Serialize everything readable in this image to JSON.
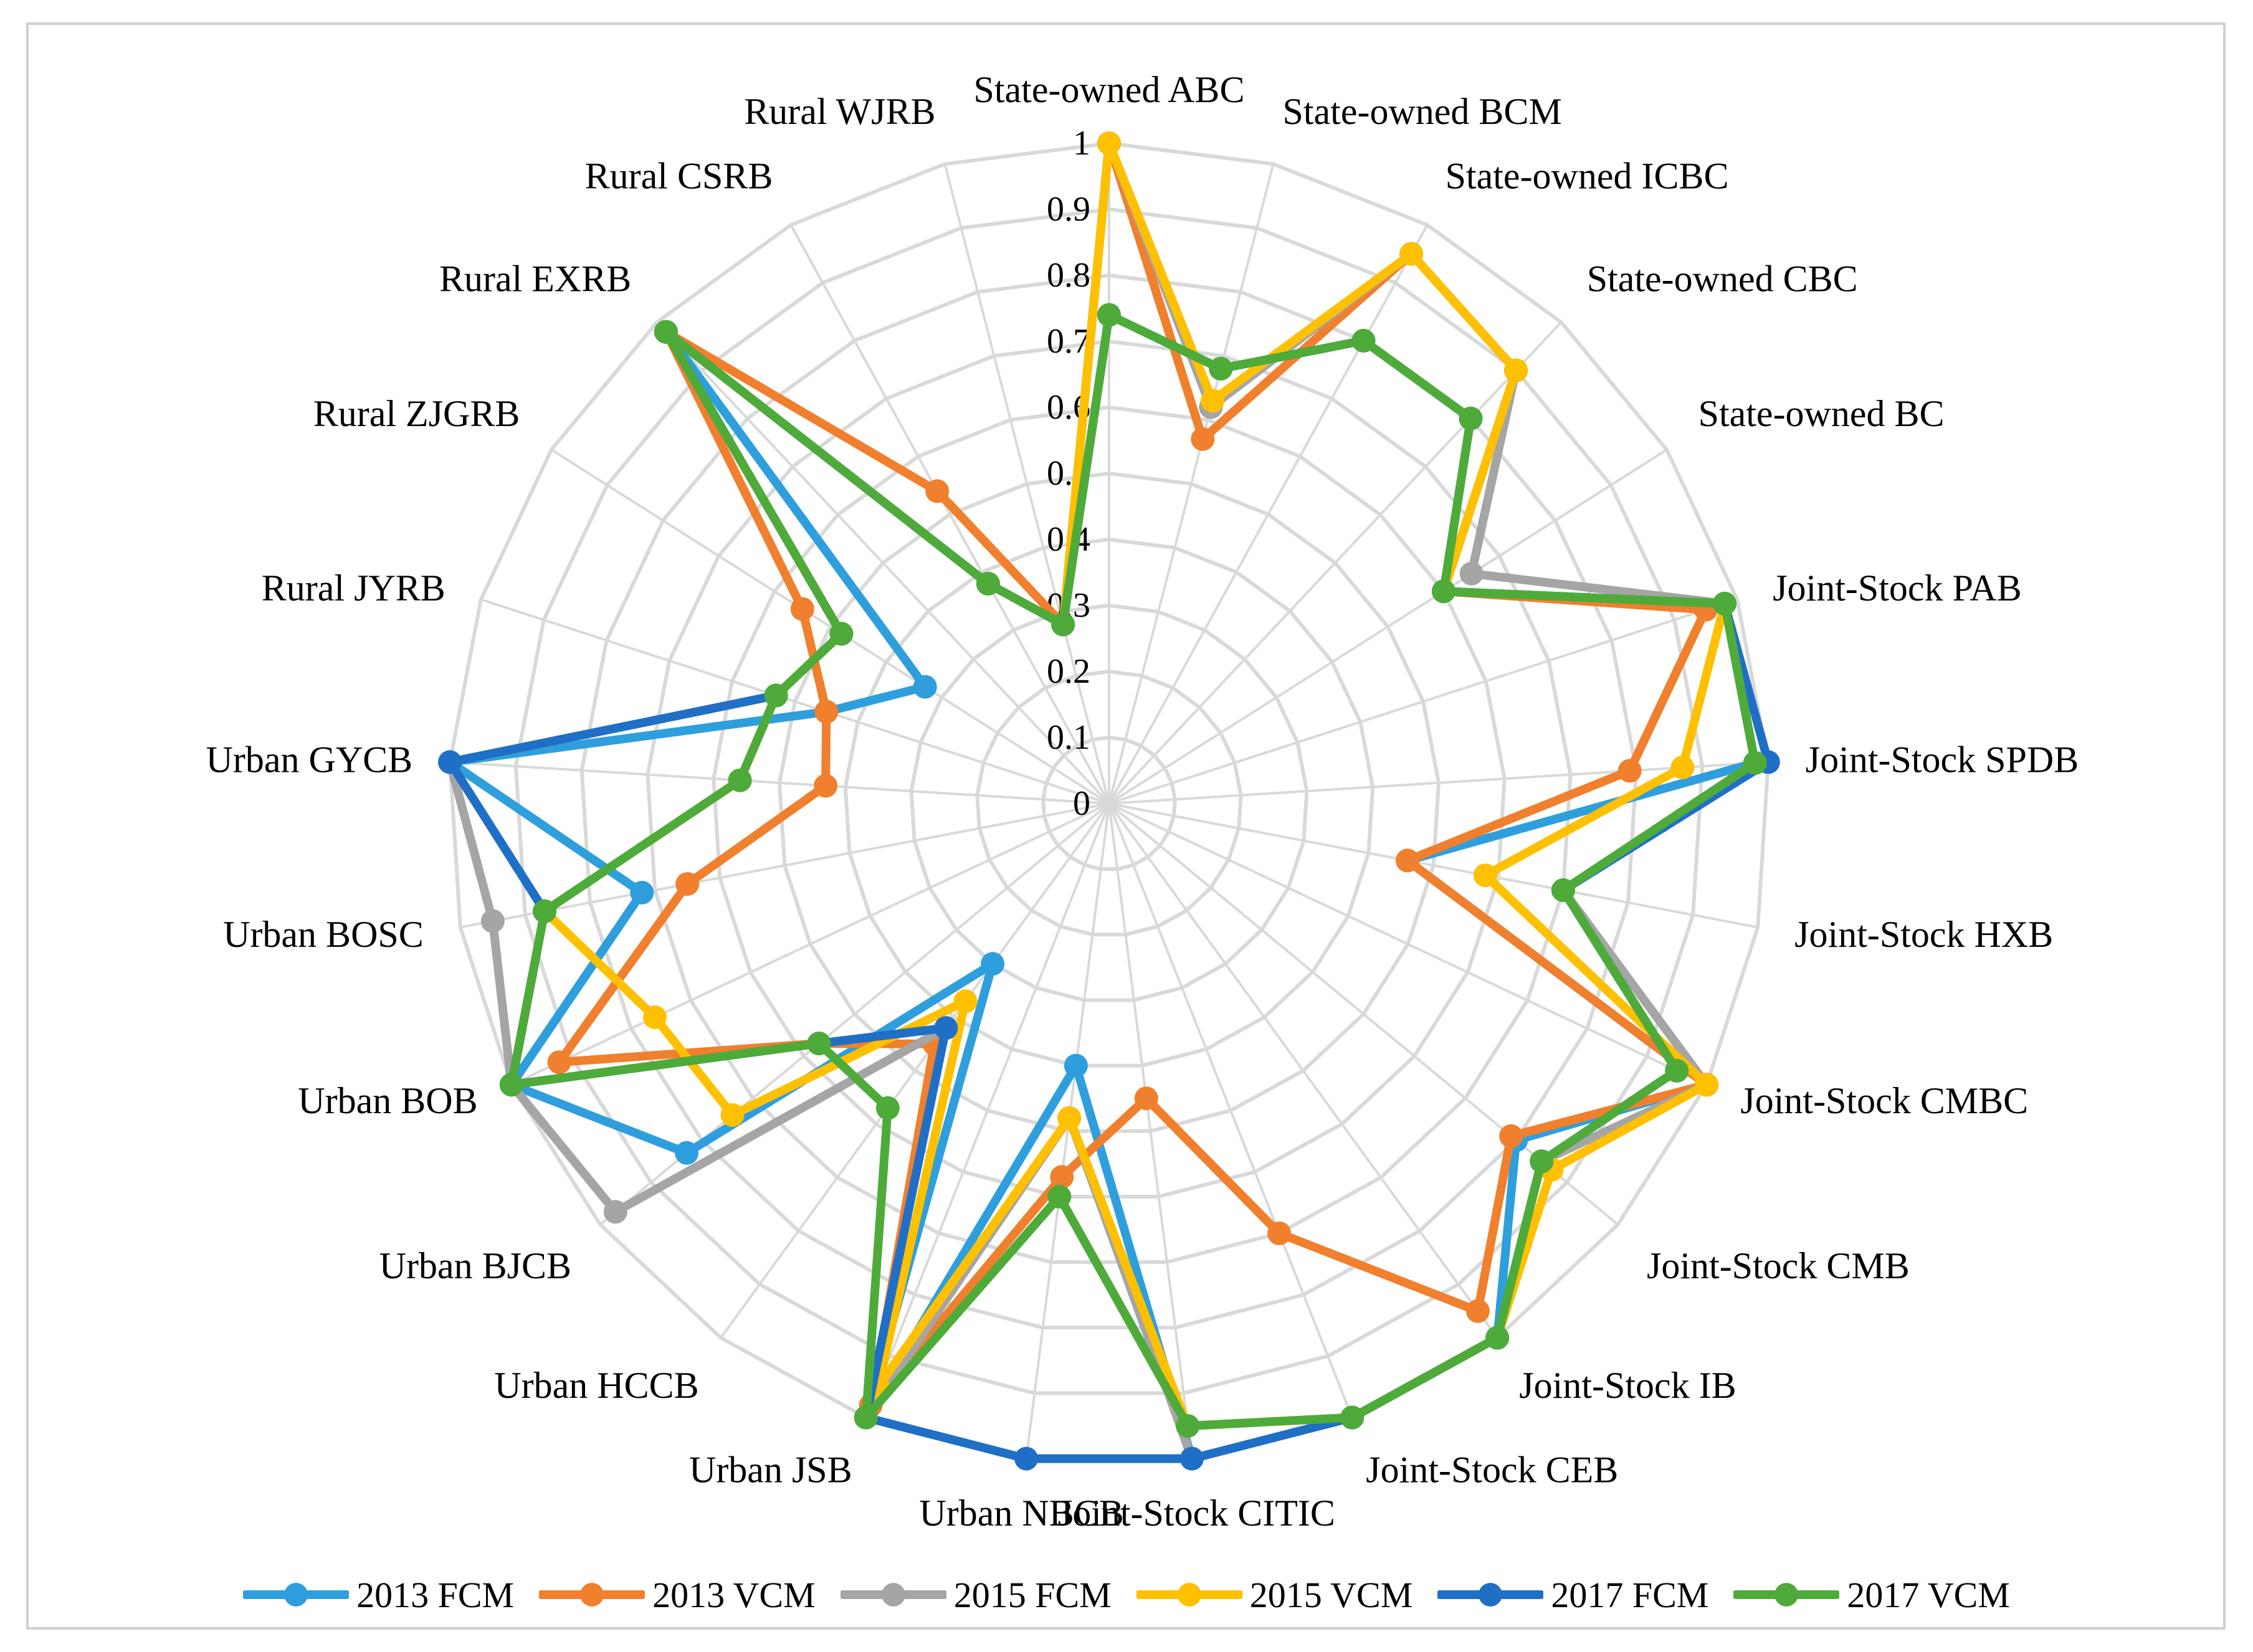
{
  "chart_data": {
    "type": "radar",
    "title": "",
    "categories": [
      "State-owned ABC",
      "State-owned BCM",
      "State-owned ICBC",
      "State-owned CBC",
      "State-owned BC",
      "Joint-Stock PAB",
      "Joint-Stock SPDB",
      "Joint-Stock HXB",
      "Joint-Stock CMBC",
      "Joint-Stock CMB",
      "Joint-Stock IB",
      "Joint-Stock CEB",
      "Joint-Stock CITIC",
      "Urban NBCB",
      "Urban JSB",
      "Urban HCCB",
      "Urban BJCB",
      "Urban BOB",
      "Urban BOSC",
      "Urban GYCB",
      "Rural JYRB",
      "Rural ZJGRB",
      "Rural EXRB",
      "Rural CSRB",
      "Rural WJRB"
    ],
    "rlim": [
      0,
      1
    ],
    "ticks": [
      0,
      0.1,
      0.2,
      0.3,
      0.4,
      0.5,
      0.6,
      0.7,
      0.8,
      0.9,
      1
    ],
    "tick_labels": [
      "0",
      "0.1",
      "0.2",
      "0.3",
      "0.4",
      "0.5",
      "0.6",
      "0.7",
      "0.8",
      "0.9",
      "1"
    ],
    "legend_position": "bottom",
    "series": [
      {
        "name": "2013 FCM",
        "color": "#2e9fdc",
        "values": [
          1.0,
          0.62,
          0.95,
          0.9,
          0.6,
          0.98,
          0.98,
          0.46,
          1.0,
          0.8,
          1.0,
          1.0,
          1.0,
          0.4,
          1.0,
          0.3,
          0.83,
          1.0,
          0.72,
          1.0,
          0.45,
          0.33,
          0.98,
          0.38,
          0.28
        ]
      },
      {
        "name": "2013 VCM",
        "color": "#f07f2e",
        "values": [
          1.0,
          0.57,
          0.95,
          0.9,
          0.6,
          0.95,
          0.79,
          0.46,
          1.0,
          0.79,
          0.95,
          0.7,
          0.45,
          0.57,
          0.98,
          0.45,
          0.57,
          0.92,
          0.65,
          0.43,
          0.45,
          0.55,
          0.98,
          0.54,
          0.28
        ]
      },
      {
        "name": "2015 FCM",
        "color": "#a5a5a5",
        "values": [
          1.0,
          0.62,
          0.95,
          0.9,
          0.65,
          0.98,
          0.98,
          0.7,
          1.0,
          0.85,
          1.0,
          1.0,
          1.0,
          0.48,
          1.0,
          0.42,
          0.97,
          1.0,
          0.95,
          1.0,
          0.53,
          0.48,
          0.98,
          0.38,
          0.28
        ]
      },
      {
        "name": "2015 VCM",
        "color": "#ffc000",
        "values": [
          1.0,
          0.63,
          0.95,
          0.9,
          0.6,
          0.98,
          0.87,
          0.58,
          1.0,
          0.87,
          1.0,
          1.0,
          0.95,
          0.48,
          0.95,
          0.37,
          0.74,
          0.76,
          0.87,
          0.56,
          0.53,
          0.48,
          0.98,
          0.38,
          0.28
        ]
      },
      {
        "name": "2017 FCM",
        "color": "#1f6fc6",
        "values": [
          0.74,
          0.68,
          0.8,
          0.8,
          0.6,
          0.98,
          1.0,
          0.7,
          0.95,
          0.85,
          1.0,
          1.0,
          1.0,
          1.0,
          1.0,
          0.42,
          0.57,
          1.0,
          0.87,
          1.0,
          0.53,
          0.48,
          0.98,
          0.38,
          0.28
        ]
      },
      {
        "name": "2017 VCM",
        "color": "#4eab3a",
        "values": [
          0.74,
          0.68,
          0.8,
          0.8,
          0.6,
          0.98,
          0.98,
          0.7,
          0.95,
          0.85,
          1.0,
          1.0,
          0.95,
          0.6,
          1.0,
          0.57,
          0.57,
          1.0,
          0.87,
          0.56,
          0.53,
          0.48,
          0.98,
          0.38,
          0.28
        ]
      }
    ]
  }
}
